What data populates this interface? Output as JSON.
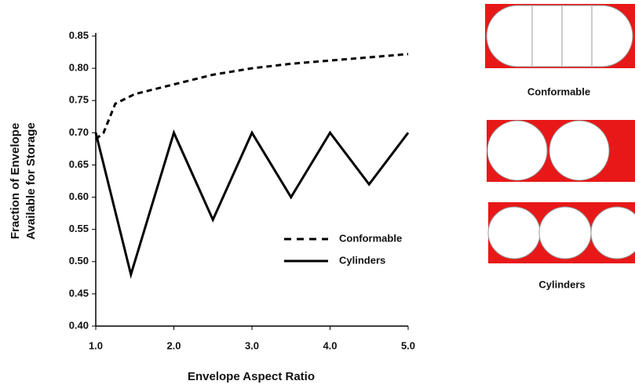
{
  "chart_data": {
    "type": "line",
    "ylabel": [
      "Fraction of Envelope",
      "Available for Storage"
    ],
    "xlabel": "Envelope Aspect Ratio",
    "xlim": [
      1,
      5
    ],
    "xticks": [
      {
        "value": 1,
        "label": "1.0"
      },
      {
        "value": 2,
        "label": "2.0"
      },
      {
        "value": 3,
        "label": "3.0"
      },
      {
        "value": 4,
        "label": "4.0"
      },
      {
        "value": 5,
        "label": "5.0"
      }
    ],
    "ylim": [
      0.4,
      0.85
    ],
    "yticks": [
      {
        "value": 0.4,
        "label": "0.40"
      },
      0.45,
      {
        "value": 0.5,
        "label": "0.50"
      },
      0.55,
      {
        "value": 0.6,
        "label": "0.60"
      },
      0.65,
      {
        "value": 0.7,
        "label": "0.70"
      },
      0.75,
      {
        "value": 0.8,
        "label": "0.80"
      },
      0.85
    ],
    "series": [
      {
        "name": "Conformable",
        "color": "#000000",
        "dashed": true,
        "x": [
          1.0,
          1.1,
          1.25,
          1.5,
          2.0,
          2.5,
          3.0,
          3.5,
          4.0,
          4.5,
          5.0
        ],
        "values": [
          0.69,
          0.7,
          0.745,
          0.76,
          0.775,
          0.79,
          0.8,
          0.807,
          0.812,
          0.817,
          0.822
        ]
      },
      {
        "name": "Cylinders",
        "color": "#000000",
        "dashed": false,
        "x": [
          1.0,
          1.45,
          2.0,
          2.5,
          3.0,
          3.5,
          4.0,
          4.5,
          5.0
        ],
        "values": [
          0.7,
          0.48,
          0.7,
          0.565,
          0.7,
          0.6,
          0.7,
          0.62,
          0.7
        ]
      }
    ]
  },
  "diagrams": {
    "conformable_label": "Conformable",
    "cylinders_label": "Cylinders"
  }
}
